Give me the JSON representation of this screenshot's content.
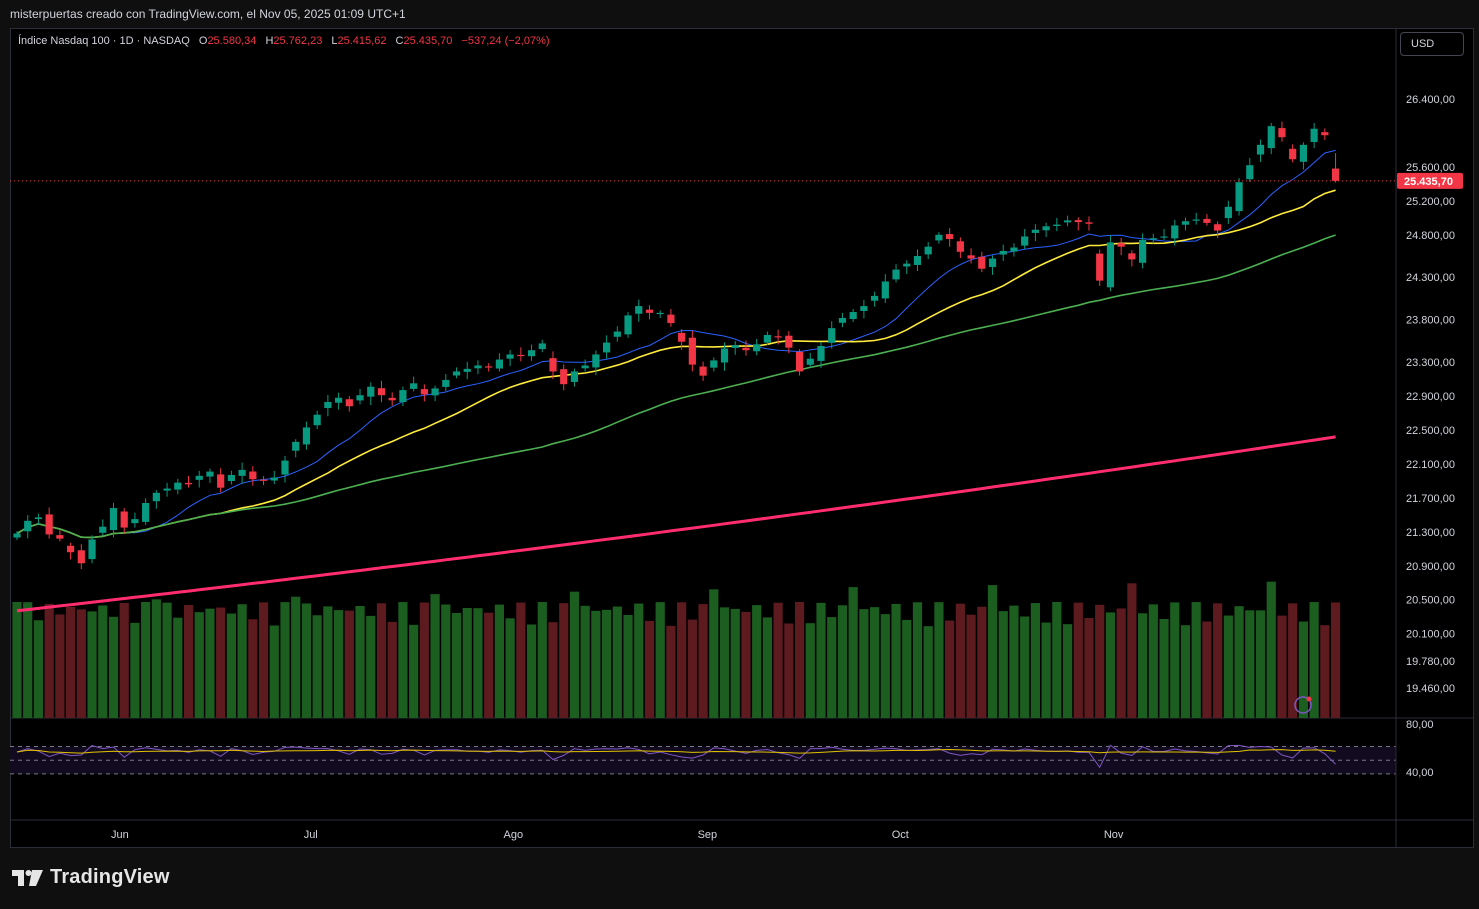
{
  "header": {
    "credit": "misterpuertas creado con TradingView.com, el Nov 05, 2025 01:09 UTC+1"
  },
  "legend": {
    "symbol": "Índice Nasdaq 100 · 1D · NASDAQ",
    "open_label": "O",
    "open": "25.580,34",
    "high_label": "H",
    "high": "25.762,23",
    "low_label": "L",
    "low": "25.415,62",
    "close_label": "C",
    "close": "25.435,70",
    "change": "−537,24 (−2,07%)"
  },
  "currency": "USD",
  "footer": {
    "brand": "TradingView"
  },
  "colors": {
    "up": "#089981",
    "down": "#f23645",
    "vol_up": "#1b5e20",
    "vol_down": "#5d1a1f",
    "ma10": "#2962ff",
    "ma20": "#ffeb3b",
    "ma50": "#4caf50",
    "ma200": "#ff2d6f",
    "rsi": "#7e57c2",
    "rsi_ma": "#e0c200"
  },
  "chart_data": {
    "type": "candlestick",
    "title": "Índice Nasdaq 100 · 1D · NASDAQ",
    "price_axis_ticks": [
      "26.400,00",
      "25.600,00",
      "25.200,00",
      "24.800,00",
      "24.300,00",
      "23.800,00",
      "23.300,00",
      "22.900,00",
      "22.500,00",
      "22.100,00",
      "21.700,00",
      "21.300,00",
      "20.900,00",
      "20.500,00",
      "20.100,00",
      "19.780,00",
      "19.460,00"
    ],
    "price_tick_values": [
      26400,
      25600,
      25200,
      24800,
      24300,
      23800,
      23300,
      22900,
      22500,
      22100,
      21700,
      21300,
      20900,
      20500,
      20100,
      19780,
      19460
    ],
    "last_price_label": "25.435,70",
    "last_price": 25435.7,
    "x_labels": [
      {
        "label": "Jun",
        "index": 9.6
      },
      {
        "label": "Jul",
        "index": 27.4
      },
      {
        "label": "Ago",
        "index": 46.3
      },
      {
        "label": "Sep",
        "index": 64.4
      },
      {
        "label": "Oct",
        "index": 82.4
      },
      {
        "label": "Nov",
        "index": 102.3
      }
    ],
    "close": [
      21280,
      21430,
      21470,
      21270,
      21220,
      21060,
      20930,
      21210,
      21360,
      21580,
      21350,
      21450,
      21640,
      21760,
      21810,
      21880,
      21860,
      21960,
      22010,
      21820,
      21970,
      22030,
      21920,
      21910,
      21940,
      22140,
      22360,
      22530,
      22680,
      22830,
      22880,
      22780,
      22910,
      23010,
      22910,
      22850,
      22970,
      23050,
      22920,
      22990,
      23090,
      23190,
      23220,
      23260,
      23240,
      23330,
      23390,
      23380,
      23440,
      23520,
      23190,
      23040,
      23190,
      23260,
      23390,
      23530,
      23660,
      23850,
      23960,
      23880,
      23880,
      23760,
      23540,
      23270,
      23140,
      23320,
      23460,
      23500,
      23440,
      23510,
      23620,
      23590,
      23470,
      23190,
      23340,
      23490,
      23700,
      23820,
      23890,
      23960,
      24080,
      24250,
      24390,
      24460,
      24550,
      24660,
      24800,
      24750,
      24600,
      24520,
      24400,
      24520,
      24610,
      24650,
      24780,
      24860,
      24900,
      24920,
      24970,
      24950,
      24930,
      24260,
      24710,
      24660,
      24510,
      24740,
      24760,
      24780,
      24910,
      24960,
      24980,
      24940,
      24850,
      25130,
      25420,
      25620,
      25860,
      26080,
      25950,
      25690,
      25860,
      26050,
      25973,
      25435.7
    ],
    "volume_labels": [
      "19.460,00 scale"
    ],
    "rsi_levels": [
      "80,00",
      "40,00"
    ],
    "ma_periods": [
      10,
      20,
      50,
      200
    ],
    "legend_position": "top-left"
  }
}
